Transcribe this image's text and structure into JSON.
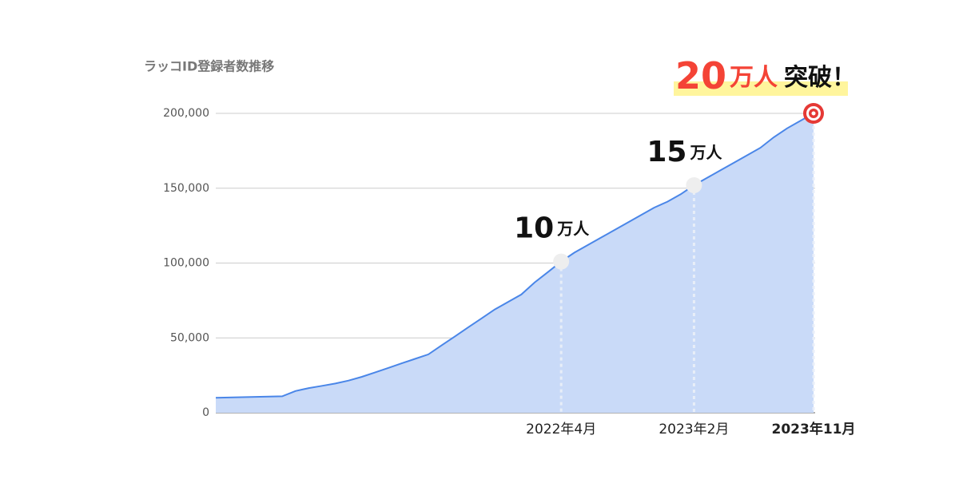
{
  "chart_data": {
    "type": "area",
    "title": "ラッコID登録者数推移",
    "categories": [
      null,
      null,
      null,
      null,
      null,
      null,
      null,
      null,
      null,
      null,
      null,
      null,
      null,
      null,
      null,
      null,
      null,
      null,
      null,
      null,
      null,
      null,
      null,
      null,
      null,
      null,
      "2022年4月",
      null,
      null,
      null,
      null,
      null,
      null,
      null,
      null,
      null,
      "2023年2月",
      null,
      null,
      null,
      null,
      null,
      null,
      null,
      null,
      "2023年11月"
    ],
    "series": [
      {
        "color": "#4a86e8",
        "fill": "#c9daf8",
        "values": [
          10000,
          10200,
          10400,
          10600,
          10800,
          11000,
          14500,
          16500,
          18000,
          19500,
          21500,
          24000,
          27000,
          30000,
          33000,
          36000,
          39000,
          45000,
          51000,
          57000,
          63000,
          69000,
          74000,
          79000,
          87000,
          94000,
          101000,
          107000,
          112000,
          117000,
          122000,
          127000,
          132000,
          137000,
          141000,
          146000,
          152000,
          157000,
          162000,
          167000,
          172000,
          177000,
          184000,
          190000,
          195000,
          200000
        ]
      }
    ],
    "ylim": [
      0,
      200000
    ],
    "yticks": [
      0,
      {
        "value": 50000,
        "label": "50,000"
      },
      {
        "value": 100000,
        "label": "100,000"
      },
      {
        "value": 150000,
        "label": "150,000"
      },
      {
        "value": 200000,
        "label": "200,000"
      }
    ],
    "grid": true,
    "annotations": [
      {
        "number": "10",
        "unit": "万人"
      },
      {
        "number": "15",
        "unit": "万人"
      },
      {
        "number": "20",
        "unit": "万人",
        "suffix": "突破！",
        "color": "#f44336"
      }
    ]
  }
}
